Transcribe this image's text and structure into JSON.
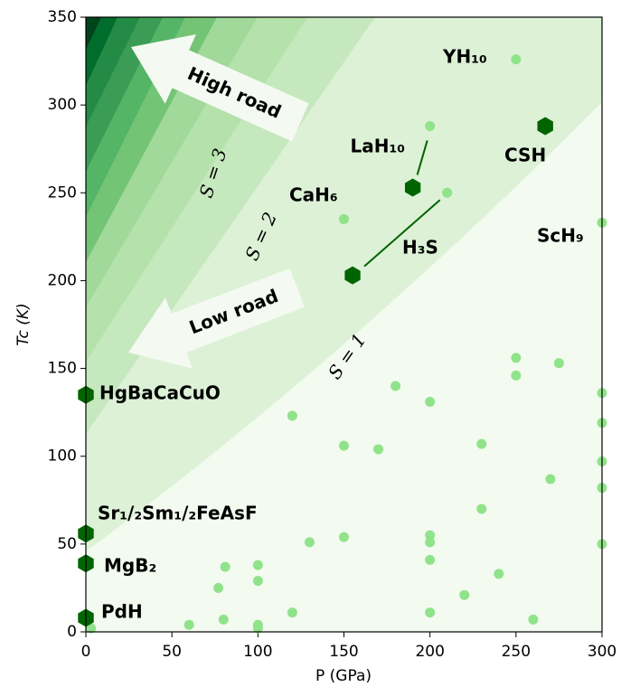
{
  "chart_data": {
    "type": "scatter",
    "x_label": "P (GPa)",
    "y_label": "Tc (K)",
    "xlim": [
      0,
      300
    ],
    "ylim": [
      0,
      350
    ],
    "xticks": [
      0,
      50,
      100,
      150,
      200,
      250,
      300
    ],
    "yticks": [
      0,
      50,
      100,
      150,
      200,
      250,
      300,
      350
    ],
    "grid": false,
    "series": [
      {
        "color": "#90e38a",
        "x": [
          3,
          60,
          77,
          80,
          81,
          100,
          100,
          100,
          100,
          120,
          120,
          130,
          150,
          150,
          150,
          170,
          180,
          200,
          200,
          200,
          200,
          200,
          200,
          210,
          220,
          230,
          230,
          240,
          250,
          250,
          250,
          260,
          270,
          275,
          300,
          300,
          300,
          300,
          300,
          300
        ],
        "values": [
          2,
          4,
          25,
          7,
          37,
          38,
          29,
          4,
          2,
          11,
          123,
          51,
          106,
          54,
          235,
          104,
          140,
          288,
          131,
          55,
          51,
          41,
          11,
          250,
          21,
          107,
          70,
          33,
          326,
          156,
          146,
          7,
          87,
          153,
          233,
          136,
          119,
          97,
          82,
          50
        ]
      },
      {
        "color": "#006400",
        "x": [
          0,
          0,
          0,
          0,
          190,
          155,
          267
        ],
        "values": [
          135,
          56,
          39,
          8,
          253,
          203,
          288
        ],
        "labels": [
          "HgBaCaCuO",
          "Sr₁/₂Sm₁/₂FeAsF",
          "MgB₂",
          "PdH",
          "LaH₁₀",
          "H₃S",
          "CSH"
        ]
      }
    ],
    "annotations": [
      "YH₁₀",
      "CaH₆",
      "ScH₉",
      "High road",
      "Low road",
      "S = 1",
      "S = 2",
      "S = 3"
    ]
  }
}
